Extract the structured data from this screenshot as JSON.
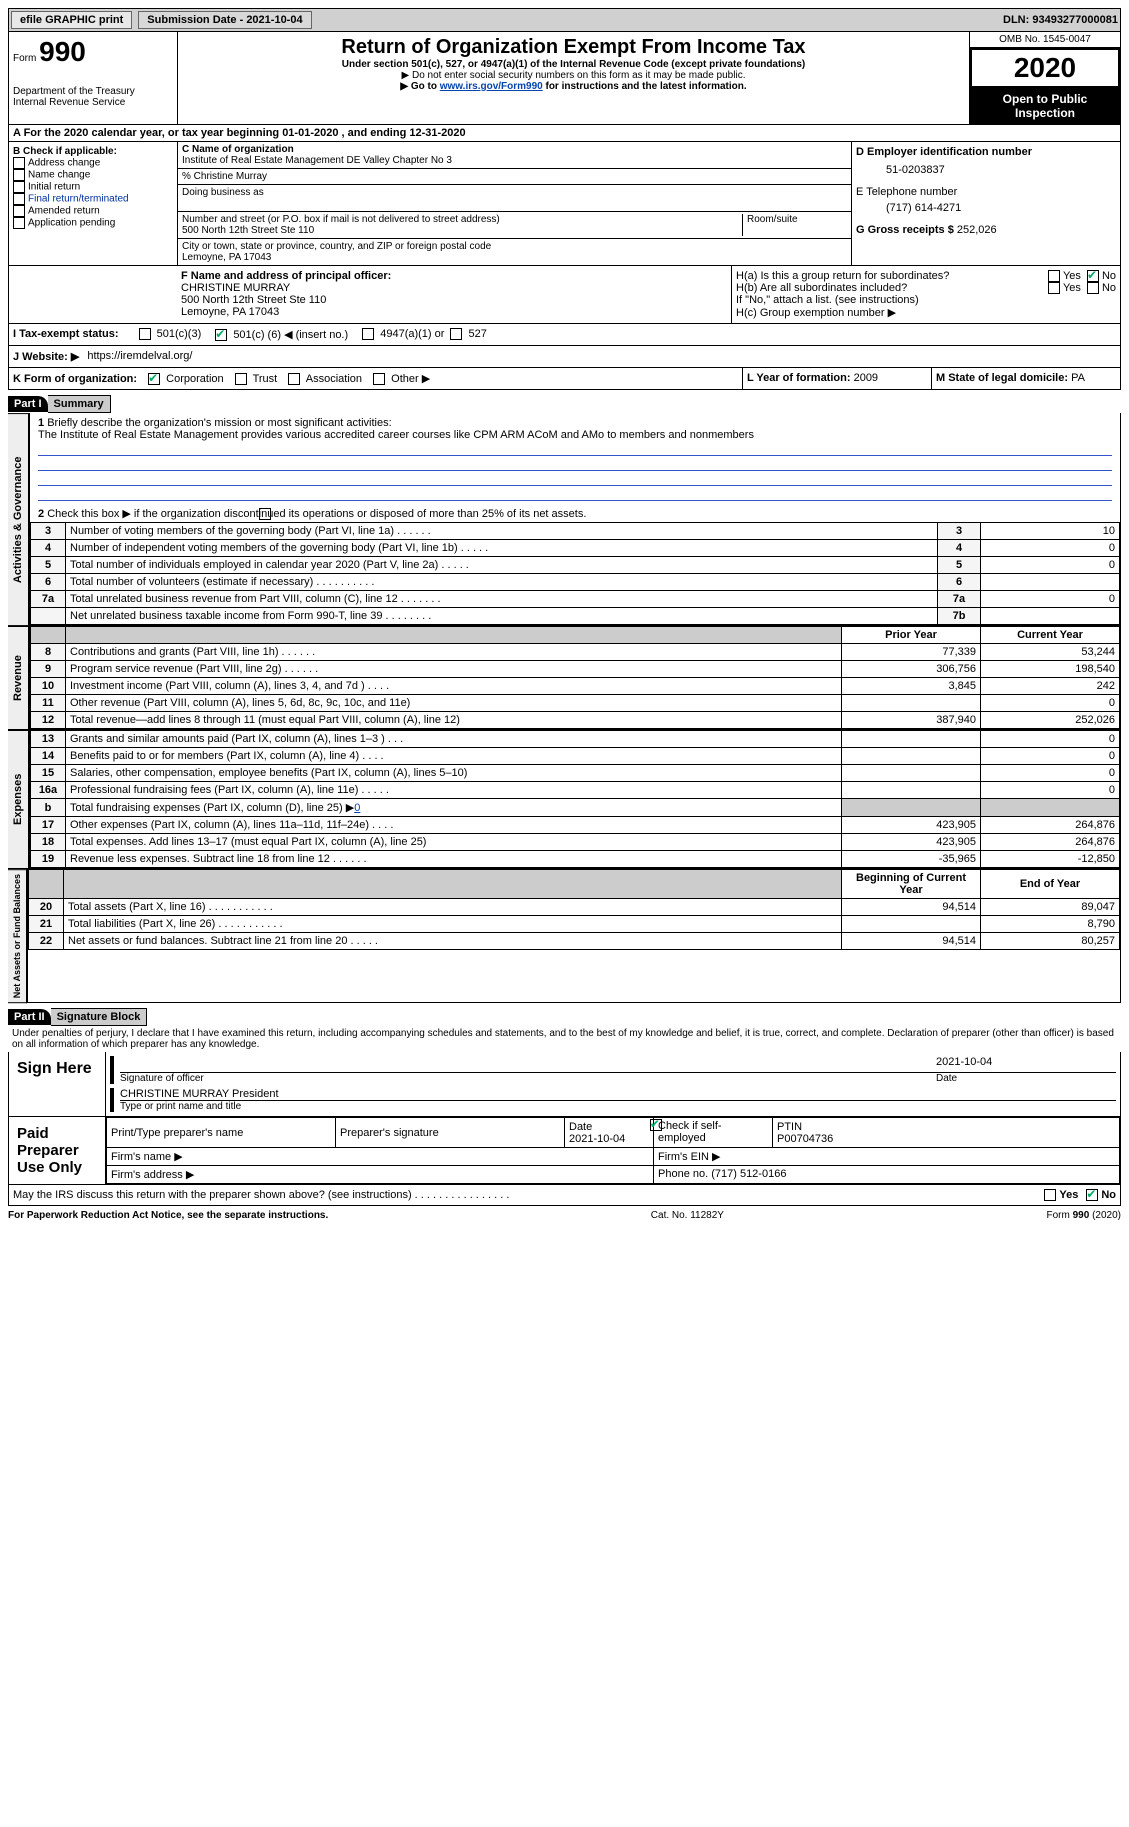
{
  "topbar": {
    "efile": "efile GRAPHIC print",
    "submission": "Submission Date - 2021-10-04",
    "dln": "DLN: 93493277000081"
  },
  "header": {
    "form_label": "Form",
    "form_num": "990",
    "dept": "Department of the Treasury\nInternal Revenue Service",
    "title": "Return of Organization Exempt From Income Tax",
    "sub1": "Under section 501(c), 527, or 4947(a)(1) of the Internal Revenue Code (except private foundations)",
    "sub2": "▶ Do not enter social security numbers on this form as it may be made public.",
    "sub3_pre": "▶ Go to ",
    "sub3_link": "www.irs.gov/Form990",
    "sub3_post": " for instructions and the latest information.",
    "omb": "OMB No. 1545-0047",
    "year": "2020",
    "open": "Open to Public Inspection"
  },
  "lineA": "A For the 2020 calendar year, or tax year beginning 01-01-2020   , and ending 12-31-2020",
  "boxB": {
    "hdr": "B Check if applicable:",
    "opts": [
      "Address change",
      "Name change",
      "Initial return",
      "Final return/terminated",
      "Amended return",
      "Application pending"
    ]
  },
  "boxC": {
    "name_lbl": "C Name of organization",
    "name": "Institute of Real Estate Management DE Valley Chapter No 3",
    "care": "% Christine Murray",
    "dba_lbl": "Doing business as",
    "addr_lbl": "Number and street (or P.O. box if mail is not delivered to street address)",
    "room_lbl": "Room/suite",
    "addr": "500 North 12th Street Ste 110",
    "city_lbl": "City or town, state or province, country, and ZIP or foreign postal code",
    "city": "Lemoyne, PA   17043"
  },
  "boxD": {
    "lbl": "D Employer identification number",
    "val": "51-0203837"
  },
  "boxE": {
    "lbl": "E Telephone number",
    "val": "(717) 614-4271"
  },
  "boxG": {
    "lbl": "G Gross receipts $",
    "val": "252,026"
  },
  "boxF": {
    "lbl": "F Name and address of principal officer:",
    "name": "CHRISTINE MURRAY",
    "addr1": "500 North 12th Street Ste 110",
    "addr2": "Lemoyne, PA   17043"
  },
  "boxH": {
    "a": "H(a)  Is this a group return for subordinates?",
    "b": "H(b)  Are all subordinates included?",
    "b2": "If \"No,\" attach a list. (see instructions)",
    "c": "H(c)  Group exemption number ▶"
  },
  "boxI": {
    "lbl": "I   Tax-exempt status:",
    "o1": "501(c)(3)",
    "o2_pre": "501(c) (",
    "o2_num": "6",
    "o2_post": ") ◀ (insert no.)",
    "o3": "4947(a)(1) or",
    "o4": "527"
  },
  "boxJ": {
    "lbl": "J   Website: ▶",
    "val": "https://iremdelval.org/"
  },
  "boxK": {
    "lbl": "K Form of organization:",
    "o1": "Corporation",
    "o2": "Trust",
    "o3": "Association",
    "o4": "Other ▶"
  },
  "boxL": {
    "lbl": "L Year of formation:",
    "val": "2009"
  },
  "boxM": {
    "lbl": "M State of legal domicile:",
    "val": "PA"
  },
  "yes": "Yes",
  "no": "No",
  "part1": {
    "num": "Part I",
    "title": "Summary"
  },
  "mission": {
    "num": "1",
    "lbl": "Briefly describe the organization's mission or most significant activities:",
    "txt": "The Institute of Real Estate Management provides various accredited career courses like CPM ARM ACoM and AMo to members and nonmembers"
  },
  "line2": {
    "num": "2",
    "txt": "Check this box ▶       if the organization discontinued its operations or disposed of more than 25% of its net assets."
  },
  "govSection": "Activities & Governance",
  "revSection": "Revenue",
  "expSection": "Expenses",
  "netSection": "Net Assets or Fund Balances",
  "priorHdr": "Prior Year",
  "currHdr": "Current Year",
  "bocHdr": "Beginning of Current Year",
  "eoyHdr": "End of Year",
  "lines_gov": [
    {
      "n": "3",
      "t": "Number of voting members of the governing body (Part VI, line 1a)  .   .   .   .   .   .",
      "box": "3",
      "v": "10"
    },
    {
      "n": "4",
      "t": "Number of independent voting members of the governing body (Part VI, line 1b)  .   .   .   .   .",
      "box": "4",
      "v": "0"
    },
    {
      "n": "5",
      "t": "Total number of individuals employed in calendar year 2020 (Part V, line 2a)  .   .   .   .   .",
      "box": "5",
      "v": "0"
    },
    {
      "n": "6",
      "t": "Total number of volunteers (estimate if necessary)   .   .   .   .   .   .   .   .   .   .",
      "box": "6",
      "v": ""
    },
    {
      "n": "7a",
      "t": "Total unrelated business revenue from Part VIII, column (C), line 12  .   .   .   .   .   .   .",
      "box": "7a",
      "v": "0"
    },
    {
      "n": "",
      "t": "Net unrelated business taxable income from Form 990-T, line 39  .   .   .   .   .   .   .   .",
      "box": "7b",
      "v": ""
    }
  ],
  "lines_rev": [
    {
      "n": "8",
      "t": "Contributions and grants (Part VIII, line 1h)   .   .   .   .   .   .",
      "p": "77,339",
      "c": "53,244"
    },
    {
      "n": "9",
      "t": "Program service revenue (Part VIII, line 2g)   .   .   .   .   .   .",
      "p": "306,756",
      "c": "198,540"
    },
    {
      "n": "10",
      "t": "Investment income (Part VIII, column (A), lines 3, 4, and 7d )  .   .   .   .",
      "p": "3,845",
      "c": "242"
    },
    {
      "n": "11",
      "t": "Other revenue (Part VIII, column (A), lines 5, 6d, 8c, 9c, 10c, and 11e)",
      "p": "",
      "c": "0"
    },
    {
      "n": "12",
      "t": "Total revenue—add lines 8 through 11 (must equal Part VIII, column (A), line 12)",
      "p": "387,940",
      "c": "252,026"
    }
  ],
  "lines_exp": [
    {
      "n": "13",
      "t": "Grants and similar amounts paid (Part IX, column (A), lines 1–3 )  .   .   .",
      "p": "",
      "c": "0"
    },
    {
      "n": "14",
      "t": "Benefits paid to or for members (Part IX, column (A), line 4)  .   .   .   .",
      "p": "",
      "c": "0"
    },
    {
      "n": "15",
      "t": "Salaries, other compensation, employee benefits (Part IX, column (A), lines 5–10)",
      "p": "",
      "c": "0"
    },
    {
      "n": "16a",
      "t": "Professional fundraising fees (Part IX, column (A), line 11e)  .   .   .   .   .",
      "p": "",
      "c": "0"
    }
  ],
  "line16b": {
    "n": "b",
    "t": "Total fundraising expenses (Part IX, column (D), line 25)  ▶",
    "v": "0"
  },
  "lines_exp2": [
    {
      "n": "17",
      "t": "Other expenses (Part IX, column (A), lines 11a–11d, 11f–24e)  .   .   .   .",
      "p": "423,905",
      "c": "264,876"
    },
    {
      "n": "18",
      "t": "Total expenses. Add lines 13–17 (must equal Part IX, column (A), line 25)",
      "p": "423,905",
      "c": "264,876"
    },
    {
      "n": "19",
      "t": "Revenue less expenses. Subtract line 18 from line 12  .   .   .   .   .   .",
      "p": "-35,965",
      "c": "-12,850"
    }
  ],
  "lines_net": [
    {
      "n": "20",
      "t": "Total assets (Part X, line 16)   .   .   .   .   .   .   .   .   .   .   .",
      "p": "94,514",
      "c": "89,047"
    },
    {
      "n": "21",
      "t": "Total liabilities (Part X, line 26)  .   .   .   .   .   .   .   .   .   .   .",
      "p": "",
      "c": "8,790"
    },
    {
      "n": "22",
      "t": "Net assets or fund balances. Subtract line 21 from line 20  .   .   .   .   .",
      "p": "94,514",
      "c": "80,257"
    }
  ],
  "part2": {
    "num": "Part II",
    "title": "Signature Block"
  },
  "penalties": "Under penalties of perjury, I declare that I have examined this return, including accompanying schedules and statements, and to the best of my knowledge and belief, it is true, correct, and complete. Declaration of preparer (other than officer) is based on all information of which preparer has any knowledge.",
  "sign": {
    "here": "Sign Here",
    "sig_lbl": "Signature of officer",
    "date": "2021-10-04",
    "date_lbl": "Date",
    "name": "CHRISTINE MURRAY President",
    "name_lbl": "Type or print name and title"
  },
  "paid": {
    "hdr": "Paid Preparer Use Only",
    "c1": "Print/Type preparer's name",
    "c2": "Preparer's signature",
    "c3": "Date",
    "c3v": "2021-10-04",
    "c4": "Check        if self-employed",
    "c5": "PTIN",
    "c5v": "P00704736",
    "firmname": "Firm's name  ▶",
    "firmein": "Firm's EIN ▶",
    "firmaddr": "Firm's address ▶",
    "phone": "Phone no. (717) 512-0166"
  },
  "discuss": "May the IRS discuss this return with the preparer shown above? (see instructions)   .   .   .   .   .   .   .   .   .   .   .   .   .   .   .   .",
  "footer": {
    "l": "For Paperwork Reduction Act Notice, see the separate instructions.",
    "m": "Cat. No. 11282Y",
    "r": "Form 990 (2020)"
  }
}
